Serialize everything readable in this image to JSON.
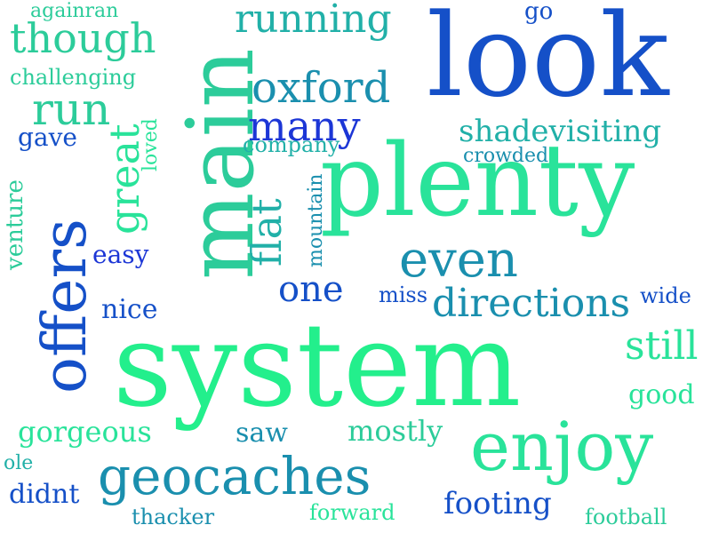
{
  "palette": {
    "blue": "#1c36d6",
    "royal": "#1550c8",
    "teal": "#1a8fae",
    "turquoise": "#21b0a8",
    "seagreen": "#2ccc9a",
    "green": "#29e39a",
    "mint": "#23ef8c"
  },
  "words": [
    {
      "text": "system",
      "color": "mint",
      "weight": 1.0
    },
    {
      "text": "plenty",
      "color": "green",
      "weight": 0.95
    },
    {
      "text": "main",
      "color": "seagreen",
      "weight": 0.9
    },
    {
      "text": "look",
      "color": "royal",
      "weight": 0.85
    },
    {
      "text": "offers",
      "color": "royal",
      "weight": 0.65
    },
    {
      "text": "enjoy",
      "color": "green",
      "weight": 0.6
    },
    {
      "text": "geocaches",
      "color": "teal",
      "weight": 0.55
    },
    {
      "text": "even",
      "color": "teal",
      "weight": 0.5
    },
    {
      "text": "though",
      "color": "seagreen",
      "weight": 0.45
    },
    {
      "text": "running",
      "color": "turquoise",
      "weight": 0.45
    },
    {
      "text": "oxford",
      "color": "teal",
      "weight": 0.45
    },
    {
      "text": "run",
      "color": "seagreen",
      "weight": 0.45
    },
    {
      "text": "great",
      "color": "green",
      "weight": 0.4
    },
    {
      "text": "flat",
      "color": "turquoise",
      "weight": 0.4
    },
    {
      "text": "directions",
      "color": "teal",
      "weight": 0.4
    },
    {
      "text": "many",
      "color": "blue",
      "weight": 0.4
    },
    {
      "text": "still",
      "color": "green",
      "weight": 0.4
    },
    {
      "text": "one",
      "color": "royal",
      "weight": 0.35
    },
    {
      "text": "shadevisiting",
      "color": "turquoise",
      "weight": 0.3
    },
    {
      "text": "gorgeous",
      "color": "green",
      "weight": 0.3
    },
    {
      "text": "mostly",
      "color": "seagreen",
      "weight": 0.3
    },
    {
      "text": "footing",
      "color": "royal",
      "weight": 0.3
    },
    {
      "text": "nice",
      "color": "royal",
      "weight": 0.3
    },
    {
      "text": "easy",
      "color": "blue",
      "weight": 0.28
    },
    {
      "text": "good",
      "color": "green",
      "weight": 0.28
    },
    {
      "text": "saw",
      "color": "teal",
      "weight": 0.28
    },
    {
      "text": "didnt",
      "color": "royal",
      "weight": 0.27
    },
    {
      "text": "gave",
      "color": "royal",
      "weight": 0.25
    },
    {
      "text": "venture",
      "color": "seagreen",
      "weight": 0.25
    },
    {
      "text": "challenging",
      "color": "seagreen",
      "weight": 0.22
    },
    {
      "text": "company",
      "color": "turquoise",
      "weight": 0.22
    },
    {
      "text": "crowded",
      "color": "teal",
      "weight": 0.22
    },
    {
      "text": "loved",
      "color": "green",
      "weight": 0.2
    },
    {
      "text": "mountain",
      "color": "teal",
      "weight": 0.2
    },
    {
      "text": "miss",
      "color": "royal",
      "weight": 0.2
    },
    {
      "text": "wide",
      "color": "royal",
      "weight": 0.2
    },
    {
      "text": "againran",
      "color": "seagreen",
      "weight": 0.2
    },
    {
      "text": "go",
      "color": "royal",
      "weight": 0.2
    },
    {
      "text": "ole",
      "color": "turquoise",
      "weight": 0.18
    },
    {
      "text": "thacker",
      "color": "teal",
      "weight": 0.2
    },
    {
      "text": "forward",
      "color": "green",
      "weight": 0.2
    },
    {
      "text": "football",
      "color": "seagreen",
      "weight": 0.2
    }
  ]
}
